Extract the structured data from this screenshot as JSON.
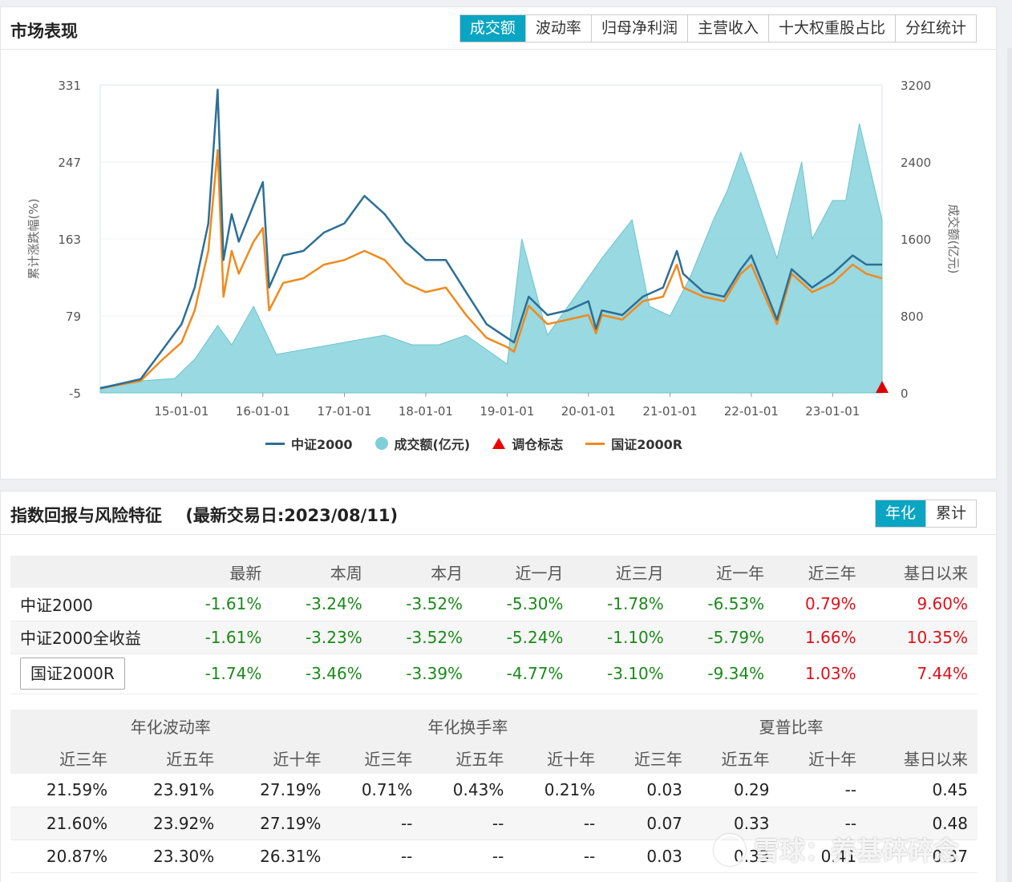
{
  "market": {
    "title": "市场表现",
    "tabs": [
      "成交额",
      "波动率",
      "归母净利润",
      "主营收入",
      "十大权重股占比",
      "分红统计"
    ],
    "active_tab": 0
  },
  "chart_data": {
    "type": "line",
    "y_left_label": "累计涨跌幅(%)",
    "y_right_label": "成交额(亿元)",
    "y_left_ticks": [
      "331",
      "247",
      "163",
      "79",
      "-5"
    ],
    "y_right_ticks": [
      "3200",
      "2400",
      "1600",
      "800",
      "0"
    ],
    "ylim_left": [
      -5,
      331
    ],
    "ylim_right": [
      0,
      3200
    ],
    "x_ticks": [
      "15-01-01",
      "16-01-01",
      "17-01-01",
      "18-01-01",
      "19-01-01",
      "20-01-01",
      "21-01-01",
      "22-01-01",
      "23-01-01"
    ],
    "x_range": [
      "2014-01-01",
      "2023-08-11"
    ],
    "legend": [
      "中证2000",
      "成交额(亿元)",
      "调仓标志",
      "国证2000R"
    ],
    "colors": {
      "zz2000": "#2d6f96",
      "volume": "#7fcfd9",
      "rebalance": "#e00000",
      "gz2000r": "#f08a1c"
    },
    "series": [
      {
        "name": "中证2000",
        "x": [
          "2014-01-01",
          "2014-04-01",
          "2014-07-01",
          "2014-10-01",
          "2015-01-01",
          "2015-03-01",
          "2015-05-01",
          "2015-06-12",
          "2015-07-08",
          "2015-08-14",
          "2015-09-15",
          "2015-11-20",
          "2016-01-01",
          "2016-01-29",
          "2016-04-01",
          "2016-07-01",
          "2016-10-01",
          "2017-01-01",
          "2017-04-01",
          "2017-07-01",
          "2017-10-01",
          "2018-01-01",
          "2018-04-01",
          "2018-07-01",
          "2018-10-01",
          "2019-01-01",
          "2019-02-01",
          "2019-04-08",
          "2019-07-01",
          "2019-10-01",
          "2020-01-01",
          "2020-02-04",
          "2020-03-01",
          "2020-06-01",
          "2020-09-01",
          "2020-12-01",
          "2021-02-01",
          "2021-03-01",
          "2021-06-01",
          "2021-09-01",
          "2021-11-15",
          "2022-01-01",
          "2022-04-26",
          "2022-07-01",
          "2022-10-01",
          "2023-01-01",
          "2023-04-01",
          "2023-06-01",
          "2023-08-11"
        ],
        "values": [
          0,
          5,
          10,
          40,
          70,
          110,
          180,
          326,
          140,
          190,
          160,
          200,
          225,
          110,
          145,
          150,
          170,
          180,
          210,
          190,
          160,
          140,
          140,
          105,
          70,
          55,
          50,
          100,
          80,
          85,
          95,
          65,
          85,
          80,
          100,
          110,
          150,
          125,
          105,
          100,
          130,
          145,
          75,
          130,
          110,
          125,
          145,
          135,
          135
        ]
      },
      {
        "name": "国证2000R",
        "x": [
          "2014-01-01",
          "2014-04-01",
          "2014-07-01",
          "2014-10-01",
          "2015-01-01",
          "2015-03-01",
          "2015-05-01",
          "2015-06-12",
          "2015-07-08",
          "2015-08-14",
          "2015-09-15",
          "2015-11-20",
          "2016-01-01",
          "2016-01-29",
          "2016-04-01",
          "2016-07-01",
          "2016-10-01",
          "2017-01-01",
          "2017-04-01",
          "2017-07-01",
          "2017-10-01",
          "2018-01-01",
          "2018-04-01",
          "2018-07-01",
          "2018-10-01",
          "2019-01-01",
          "2019-02-01",
          "2019-04-08",
          "2019-07-01",
          "2019-10-01",
          "2020-01-01",
          "2020-02-04",
          "2020-03-01",
          "2020-06-01",
          "2020-09-01",
          "2020-12-01",
          "2021-02-01",
          "2021-03-01",
          "2021-06-01",
          "2021-09-01",
          "2021-11-15",
          "2022-01-01",
          "2022-04-26",
          "2022-07-01",
          "2022-10-01",
          "2023-01-01",
          "2023-04-01",
          "2023-06-01",
          "2023-08-11"
        ],
        "values": [
          0,
          4,
          8,
          30,
          50,
          85,
          150,
          260,
          100,
          150,
          125,
          160,
          175,
          85,
          115,
          120,
          135,
          140,
          150,
          140,
          115,
          105,
          110,
          80,
          55,
          45,
          40,
          90,
          70,
          75,
          80,
          60,
          80,
          75,
          95,
          100,
          135,
          110,
          100,
          95,
          125,
          135,
          70,
          125,
          105,
          115,
          135,
          125,
          120
        ]
      },
      {
        "name": "成交额(亿元)",
        "x": [
          "2014-01-01",
          "2014-06-01",
          "2014-12-01",
          "2015-03-01",
          "2015-06-12",
          "2015-08-14",
          "2015-11-20",
          "2016-03-01",
          "2016-07-01",
          "2016-11-01",
          "2017-03-01",
          "2017-07-01",
          "2017-11-01",
          "2018-03-01",
          "2018-07-01",
          "2018-11-01",
          "2019-01-01",
          "2019-03-08",
          "2019-07-01",
          "2019-11-01",
          "2020-03-01",
          "2020-07-15",
          "2020-10-01",
          "2021-01-01",
          "2021-04-01",
          "2021-07-15",
          "2021-09-15",
          "2021-11-15",
          "2022-01-01",
          "2022-04-26",
          "2022-08-15",
          "2022-10-01",
          "2023-01-01",
          "2023-03-01",
          "2023-05-01",
          "2023-08-11"
        ],
        "values": [
          60,
          120,
          150,
          350,
          700,
          500,
          900,
          400,
          450,
          500,
          550,
          600,
          500,
          500,
          600,
          400,
          300,
          1600,
          600,
          1000,
          1400,
          1800,
          900,
          800,
          1200,
          1800,
          2100,
          2500,
          2200,
          1400,
          2400,
          1600,
          2000,
          2000,
          2800,
          1800
        ]
      }
    ],
    "rebalance_markers": [
      "2023-08-11"
    ]
  },
  "returns": {
    "title": "指数回报与风险特征",
    "subtitle": "(最新交易日:2023/08/11)",
    "toggle": [
      "年化",
      "累计"
    ],
    "active_toggle": 0,
    "headers": [
      "最新",
      "本周",
      "本月",
      "近一月",
      "近三月",
      "近一年",
      "近三年",
      "基日以来"
    ],
    "rows": [
      {
        "name": "中证2000",
        "values": [
          "-1.61%",
          "-3.24%",
          "-3.52%",
          "-5.30%",
          "-1.78%",
          "-6.53%",
          "0.79%",
          "9.60%"
        ]
      },
      {
        "name": "中证2000全收益",
        "values": [
          "-1.61%",
          "-3.23%",
          "-3.52%",
          "-5.24%",
          "-1.10%",
          "-5.79%",
          "1.66%",
          "10.35%"
        ]
      },
      {
        "name": "国证2000R",
        "values": [
          "-1.74%",
          "-3.46%",
          "-3.39%",
          "-4.77%",
          "-3.10%",
          "-9.34%",
          "1.03%",
          "7.44%"
        ]
      }
    ]
  },
  "risk": {
    "groups": [
      "年化波动率",
      "年化换手率",
      "夏普比率"
    ],
    "subheaders": [
      "近三年",
      "近五年",
      "近十年",
      "近三年",
      "近五年",
      "近十年",
      "近三年",
      "近五年",
      "近十年",
      "基日以来"
    ],
    "rows": [
      [
        "21.59%",
        "23.91%",
        "27.19%",
        "0.71%",
        "0.43%",
        "0.21%",
        "0.03",
        "0.29",
        "--",
        "0.45"
      ],
      [
        "21.60%",
        "23.92%",
        "27.19%",
        "--",
        "--",
        "--",
        "0.07",
        "0.33",
        "--",
        "0.48"
      ],
      [
        "20.87%",
        "23.30%",
        "26.31%",
        "--",
        "--",
        "--",
        "0.03",
        "0.33",
        "0.41",
        "0.37"
      ]
    ]
  },
  "watermark": "雪球：养基碎碎念"
}
